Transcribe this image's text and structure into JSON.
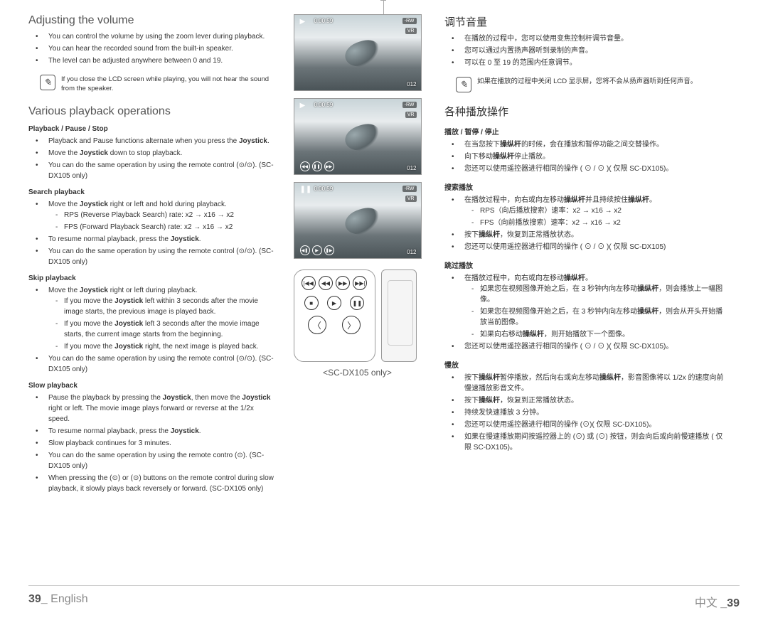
{
  "left": {
    "adjust_title": "Adjusting the volume",
    "adjust_bullets": [
      "You can control the volume by using the zoom lever during playback.",
      "You can hear the recorded sound from the built-in speaker.",
      "The level can be adjusted anywhere between 0 and 19."
    ],
    "note": "If you close the LCD screen while playing, you will not hear the sound from the speaker.",
    "ops_title": "Various playback operations",
    "play_pause_stop": {
      "heading": "Playback / Pause / Stop",
      "items": [
        "Playback and Pause functions alternate when you press the <b>Joystick</b>.",
        "Move the <b>Joystick</b> down to stop playback.",
        "You can do the same operation by using the remote control (⊙/⊙). (SC-DX105 only)"
      ]
    },
    "search": {
      "heading": "Search playback",
      "items": [
        "Move the <b>Joystick</b> right or left and hold during playback."
      ],
      "subitems": [
        "RPS (Reverse Playback Search) rate: x2 → x16 → x2",
        "FPS (Forward Playback Search) rate: x2 → x16 → x2"
      ],
      "items2": [
        "To resume normal playback, press the <b>Joystick</b>.",
        "You can do the same operation by using the remote control (⊙/⊙). (SC-DX105 only)"
      ]
    },
    "skip": {
      "heading": "Skip playback",
      "items": [
        "Move the <b>Joystick</b> right or left during playback."
      ],
      "subitems": [
        "If you move the <b>Joystick</b> left within 3 seconds after the movie image starts, the previous image is played back.",
        "If you move the <b>Joystick</b> left 3 seconds after the movie image starts, the current image starts from the beginning.",
        "If you move the <b>Joystick</b> right, the next image is played back."
      ],
      "items2": [
        "You can do the same operation by using the remote control (⊙/⊙). (SC-DX105 only)"
      ]
    },
    "slow": {
      "heading": "Slow playback",
      "items": [
        "Pause the playback by pressing the <b>Joystick</b>, then move the <b>Joystick</b> right or left. The movie image plays forward or reverse at the 1/2x speed.",
        "To resume normal playback, press the <b>Joystick</b>.",
        "Slow playback continues for 3 minutes.",
        "You can do the same operation by using the remote contro (⊙). (SC-DX105 only)",
        "When pressing the (⊙) or (⊙) buttons on the remote control during slow playback, it slowly plays back reversely or forward. (SC-DX105 only)"
      ]
    }
  },
  "mid": {
    "tc": "0:00:59",
    "badge1": "-RW",
    "badge2": "VR",
    "count": "012",
    "remote_label": "<SC-DX105 only>"
  },
  "right": {
    "adjust_title": "调节音量",
    "adjust_bullets": [
      "在播放的过程中，您可以使用变焦控制杆调节音量。",
      "您可以通过内置扬声器听到录制的声音。",
      "可以在 0 至 19 的范围内任意调节。"
    ],
    "note": "如果在播放的过程中关闭 LCD 显示屏，您将不会从扬声器听到任何声音。",
    "ops_title": "各种播放操作",
    "play_pause_stop": {
      "heading": "播放 / 暂停 / 停止",
      "items": [
        "在当您按下<b>操纵杆</b>的时候，会在播放和暂停功能之间交替操作。",
        "向下移动<b>操纵杆</b>停止播放。",
        "您还可以使用遥控器进行相同的操作 ( ⊙ / ⊙ )( 仅限 SC-DX105)。"
      ]
    },
    "search": {
      "heading": "搜索播放",
      "items": [
        "在播放过程中，向右或向左移动<b>操纵杆</b>并且持续按住<b>操纵杆</b>。"
      ],
      "subitems": [
        "RPS（向后播放搜索）速率：x2 → x16 → x2",
        "FPS（向前播放搜索）速率：x2 → x16 → x2"
      ],
      "items2": [
        "按下<b>操纵杆</b>，恢复到正常播放状态。",
        "您还可以使用遥控器进行相同的操作 ( ⊙ / ⊙ )( 仅限 SC-DX105)"
      ]
    },
    "skip": {
      "heading": "跳过播放",
      "items": [
        "在播放过程中，向右或向左移动<b>操纵杆</b>。"
      ],
      "subitems": [
        "如果您在视频图像开始之后，在 3 秒钟内向左移动<b>操纵杆</b>，则会播放上一幅图像。",
        "如果您在视频图像开始之后，在 3 秒钟内向左移动<b>操纵杆</b>，则会从开头开始播放当前图像。",
        "如果向右移动<b>操纵杆</b>，则开始播放下一个图像。"
      ],
      "items2": [
        "您还可以使用遥控器进行相同的操作 ( ⊙ / ⊙ )( 仅限 SC-DX105)。"
      ]
    },
    "slow": {
      "heading": "慢放",
      "items": [
        "按下<b>操纵杆</b>暂停播放，然后向右或向左移动<b>操纵杆</b>，影音图像将以 1/2x 的速度向前慢速播放影音文件。",
        "按下<b>操纵杆</b>，恢复到正常播放状态。",
        "持续发快速播放 3 分钟。",
        "您还可以使用遥控器进行相同的操作 (⊙)( 仅限 SC-DX105)。",
        "如果在慢速播放期间按遥控器上的 (⊙) 或 (⊙) 按钮，则会向后或向前慢速播放 ( 仅限 SC-DX105)。"
      ]
    }
  },
  "footer": {
    "left_page": "39_",
    "left_lang": "English",
    "right_lang": "中文",
    "right_page": "_39"
  }
}
